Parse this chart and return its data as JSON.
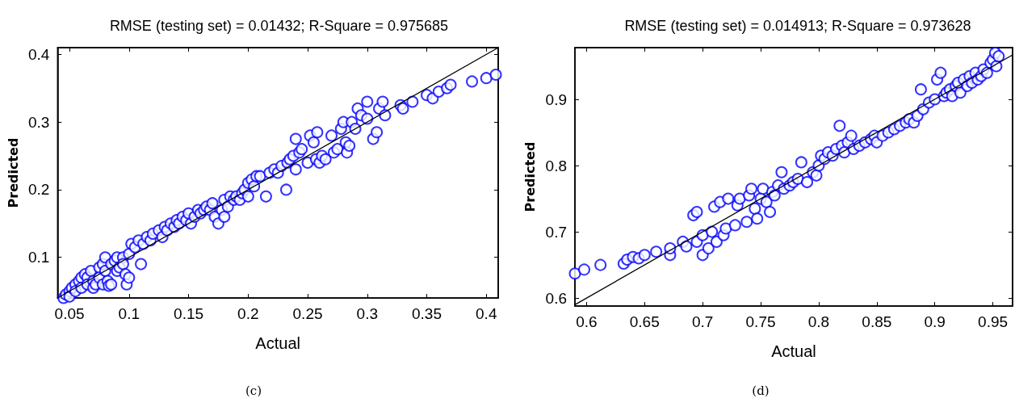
{
  "chart_data": [
    {
      "type": "scatter",
      "title": "RMSE (testing set) = 0.01432; R-Square = 0.975685",
      "xlabel": "Actual",
      "ylabel": "Predicted",
      "annotations": [
        "(c)"
      ],
      "marker": "circle",
      "xlim": [
        0.04,
        0.41
      ],
      "ylim": [
        0.04,
        0.41
      ],
      "xticks": [
        0.05,
        0.1,
        0.15,
        0.2,
        0.25,
        0.3,
        0.35,
        0.4
      ],
      "yticks": [
        0.1,
        0.2,
        0.3,
        0.4
      ],
      "series": [
        {
          "color": "#0000ff",
          "x": [
            0.045,
            0.047,
            0.05,
            0.05,
            0.052,
            0.055,
            0.055,
            0.058,
            0.06,
            0.06,
            0.063,
            0.065,
            0.065,
            0.068,
            0.07,
            0.07,
            0.072,
            0.075,
            0.075,
            0.078,
            0.078,
            0.08,
            0.08,
            0.082,
            0.083,
            0.085,
            0.085,
            0.088,
            0.09,
            0.09,
            0.092,
            0.095,
            0.095,
            0.097,
            0.098,
            0.1,
            0.1,
            0.102,
            0.105,
            0.108,
            0.11,
            0.112,
            0.115,
            0.118,
            0.12,
            0.125,
            0.128,
            0.13,
            0.132,
            0.135,
            0.138,
            0.14,
            0.142,
            0.145,
            0.148,
            0.15,
            0.152,
            0.155,
            0.158,
            0.16,
            0.163,
            0.165,
            0.168,
            0.17,
            0.172,
            0.175,
            0.178,
            0.18,
            0.18,
            0.183,
            0.185,
            0.188,
            0.19,
            0.193,
            0.195,
            0.197,
            0.2,
            0.2,
            0.203,
            0.205,
            0.207,
            0.21,
            0.215,
            0.218,
            0.222,
            0.225,
            0.228,
            0.232,
            0.233,
            0.235,
            0.238,
            0.24,
            0.24,
            0.243,
            0.245,
            0.25,
            0.252,
            0.255,
            0.257,
            0.258,
            0.26,
            0.262,
            0.265,
            0.27,
            0.272,
            0.275,
            0.278,
            0.28,
            0.282,
            0.283,
            0.285,
            0.287,
            0.29,
            0.292,
            0.295,
            0.3,
            0.3,
            0.305,
            0.308,
            0.31,
            0.313,
            0.315,
            0.328,
            0.33,
            0.338,
            0.35,
            0.355,
            0.36,
            0.367,
            0.37,
            0.388,
            0.4,
            0.408
          ],
          "values": [
            0.04,
            0.045,
            0.05,
            0.042,
            0.055,
            0.06,
            0.05,
            0.065,
            0.07,
            0.055,
            0.075,
            0.07,
            0.06,
            0.08,
            0.065,
            0.055,
            0.06,
            0.085,
            0.07,
            0.09,
            0.06,
            0.1,
            0.08,
            0.065,
            0.058,
            0.09,
            0.06,
            0.095,
            0.1,
            0.08,
            0.085,
            0.1,
            0.09,
            0.075,
            0.06,
            0.105,
            0.07,
            0.12,
            0.115,
            0.125,
            0.09,
            0.12,
            0.13,
            0.125,
            0.135,
            0.14,
            0.13,
            0.145,
            0.14,
            0.15,
            0.145,
            0.155,
            0.15,
            0.16,
            0.155,
            0.165,
            0.15,
            0.16,
            0.17,
            0.165,
            0.17,
            0.175,
            0.17,
            0.18,
            0.16,
            0.15,
            0.17,
            0.185,
            0.16,
            0.175,
            0.19,
            0.185,
            0.19,
            0.185,
            0.195,
            0.2,
            0.19,
            0.21,
            0.215,
            0.205,
            0.22,
            0.22,
            0.19,
            0.225,
            0.23,
            0.225,
            0.235,
            0.2,
            0.24,
            0.245,
            0.25,
            0.23,
            0.275,
            0.255,
            0.26,
            0.24,
            0.28,
            0.27,
            0.245,
            0.285,
            0.24,
            0.25,
            0.245,
            0.28,
            0.255,
            0.26,
            0.29,
            0.3,
            0.27,
            0.255,
            0.265,
            0.3,
            0.29,
            0.32,
            0.31,
            0.33,
            0.305,
            0.275,
            0.285,
            0.32,
            0.33,
            0.31,
            0.325,
            0.32,
            0.33,
            0.34,
            0.335,
            0.345,
            0.35,
            0.355,
            0.36,
            0.365,
            0.37
          ]
        },
        {
          "type": "line",
          "marker": "none",
          "color": "#000000",
          "x": [
            0.04,
            0.41
          ],
          "values": [
            0.04,
            0.41
          ]
        }
      ]
    },
    {
      "type": "scatter",
      "title": "RMSE (testing set) = 0.014913; R-Square = 0.973628",
      "xlabel": "Actual",
      "ylabel": "Predicted",
      "annotations": [
        "(d)"
      ],
      "marker": "circle",
      "xlim": [
        0.59,
        0.967
      ],
      "ylim": [
        0.588,
        0.978
      ],
      "xticks": [
        0.6,
        0.65,
        0.7,
        0.75,
        0.8,
        0.85,
        0.9,
        0.95
      ],
      "yticks": [
        0.6,
        0.7,
        0.8,
        0.9
      ],
      "series": [
        {
          "color": "#0000ff",
          "x": [
            0.59,
            0.598,
            0.612,
            0.632,
            0.635,
            0.64,
            0.645,
            0.65,
            0.66,
            0.672,
            0.672,
            0.683,
            0.686,
            0.692,
            0.695,
            0.695,
            0.7,
            0.7,
            0.705,
            0.708,
            0.71,
            0.712,
            0.715,
            0.718,
            0.72,
            0.722,
            0.728,
            0.73,
            0.732,
            0.738,
            0.74,
            0.742,
            0.745,
            0.747,
            0.75,
            0.752,
            0.755,
            0.758,
            0.76,
            0.762,
            0.765,
            0.768,
            0.77,
            0.775,
            0.778,
            0.782,
            0.785,
            0.79,
            0.795,
            0.798,
            0.8,
            0.802,
            0.805,
            0.808,
            0.812,
            0.815,
            0.818,
            0.82,
            0.822,
            0.825,
            0.828,
            0.83,
            0.835,
            0.84,
            0.845,
            0.848,
            0.85,
            0.855,
            0.86,
            0.865,
            0.87,
            0.875,
            0.878,
            0.882,
            0.885,
            0.888,
            0.89,
            0.895,
            0.9,
            0.902,
            0.905,
            0.908,
            0.91,
            0.913,
            0.915,
            0.918,
            0.92,
            0.922,
            0.925,
            0.928,
            0.93,
            0.932,
            0.935,
            0.937,
            0.94,
            0.942,
            0.945,
            0.948,
            0.95,
            0.952,
            0.953,
            0.955
          ],
          "values": [
            0.637,
            0.643,
            0.65,
            0.652,
            0.658,
            0.662,
            0.66,
            0.665,
            0.67,
            0.665,
            0.675,
            0.685,
            0.678,
            0.725,
            0.73,
            0.685,
            0.695,
            0.665,
            0.675,
            0.7,
            0.738,
            0.685,
            0.745,
            0.695,
            0.705,
            0.75,
            0.71,
            0.74,
            0.75,
            0.715,
            0.755,
            0.765,
            0.735,
            0.72,
            0.75,
            0.765,
            0.745,
            0.73,
            0.76,
            0.755,
            0.77,
            0.79,
            0.765,
            0.77,
            0.775,
            0.78,
            0.805,
            0.775,
            0.79,
            0.785,
            0.8,
            0.815,
            0.81,
            0.82,
            0.815,
            0.825,
            0.86,
            0.83,
            0.82,
            0.835,
            0.845,
            0.825,
            0.83,
            0.835,
            0.84,
            0.845,
            0.835,
            0.845,
            0.85,
            0.855,
            0.86,
            0.865,
            0.87,
            0.865,
            0.875,
            0.915,
            0.885,
            0.895,
            0.9,
            0.93,
            0.94,
            0.905,
            0.91,
            0.915,
            0.905,
            0.92,
            0.925,
            0.91,
            0.93,
            0.92,
            0.935,
            0.925,
            0.94,
            0.93,
            0.935,
            0.945,
            0.94,
            0.955,
            0.96,
            0.97,
            0.95,
            0.965
          ]
        },
        {
          "type": "line",
          "marker": "none",
          "color": "#000000",
          "x": [
            0.59,
            0.967
          ],
          "values": [
            0.59,
            0.967
          ]
        }
      ]
    }
  ]
}
